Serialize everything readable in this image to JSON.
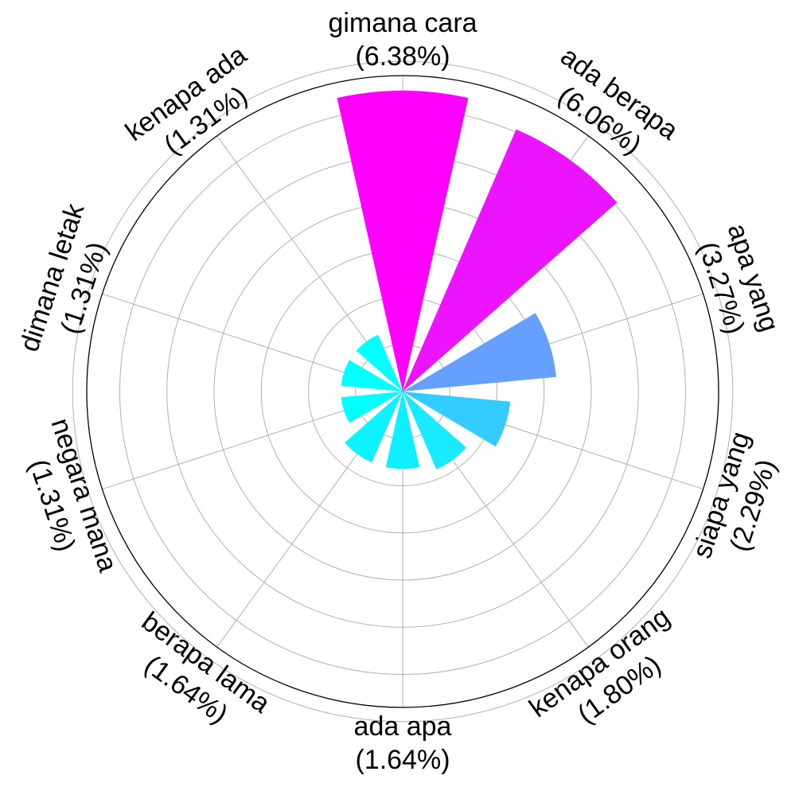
{
  "chart_data": {
    "type": "polar-bar",
    "categories": [
      "gimana cara",
      "ada berapa",
      "apa yang",
      "siapa yang",
      "kenapa orang",
      "ada apa",
      "berapa lama",
      "negara mana",
      "dimana letak",
      "kenapa ada"
    ],
    "labels": [
      "(6.38%)",
      "(6.06%)",
      "(3.27%)",
      "(2.29%)",
      "(1.80%)",
      "(1.64%)",
      "(1.64%)",
      "(1.31%)",
      "(1.31%)",
      "(1.31%)"
    ],
    "values": [
      6.38,
      6.06,
      3.27,
      2.29,
      1.8,
      1.64,
      1.64,
      1.31,
      1.31,
      1.31
    ],
    "colors": [
      "#ff00ff",
      "#ec13ff",
      "#66a0ff",
      "#33ccff",
      "#1aeaff",
      "#10efff",
      "#0ef2ff",
      "#00ffff",
      "#00ffff",
      "#00ffff"
    ],
    "sector_order": "clockwise from top",
    "rlim": [
      0,
      6.7
    ],
    "grid": true,
    "ring_count": 7,
    "xlabel": "",
    "ylabel": "",
    "title": ""
  }
}
